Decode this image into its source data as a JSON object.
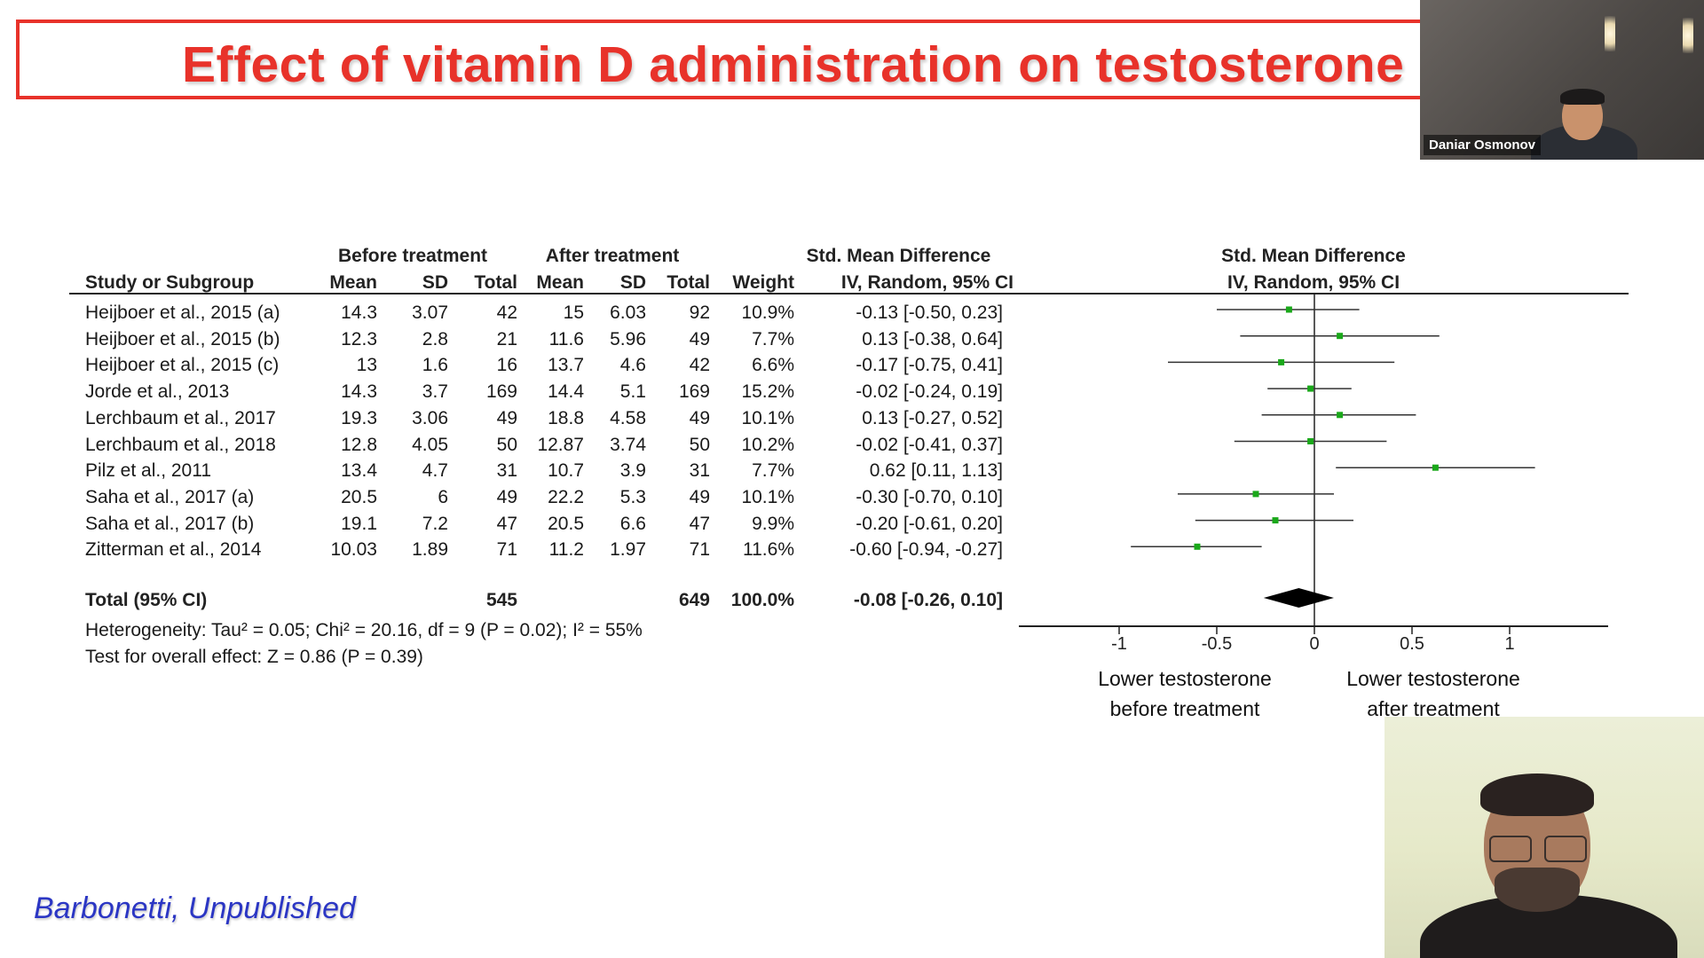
{
  "slide": {
    "title": "Effect of vitamin D administration on testosterone le",
    "citation": "Barbonetti, Unpublished"
  },
  "table": {
    "group_headers": {
      "before": "Before treatment",
      "after": "After treatment",
      "smd": "Std. Mean Difference",
      "plot": "Std. Mean Difference"
    },
    "columns": {
      "study": "Study or Subgroup",
      "mean1": "Mean",
      "sd1": "SD",
      "total1": "Total",
      "mean2": "Mean",
      "sd2": "SD",
      "total2": "Total",
      "weight": "Weight",
      "ci": "IV, Random, 95% CI",
      "plot_ci": "IV, Random, 95% CI"
    },
    "studies": [
      {
        "name": "Heijboer et al., 2015 (a)",
        "mean1": "14.3",
        "sd1": "3.07",
        "total1": "42",
        "mean2": "15",
        "sd2": "6.03",
        "total2": "92",
        "weight": "10.9%",
        "ci_text": "-0.13 [-0.50, 0.23]",
        "est": -0.13,
        "lo": -0.5,
        "hi": 0.23
      },
      {
        "name": "Heijboer et al., 2015 (b)",
        "mean1": "12.3",
        "sd1": "2.8",
        "total1": "21",
        "mean2": "11.6",
        "sd2": "5.96",
        "total2": "49",
        "weight": "7.7%",
        "ci_text": "0.13 [-0.38, 0.64]",
        "est": 0.13,
        "lo": -0.38,
        "hi": 0.64
      },
      {
        "name": "Heijboer et al., 2015 (c)",
        "mean1": "13",
        "sd1": "1.6",
        "total1": "16",
        "mean2": "13.7",
        "sd2": "4.6",
        "total2": "42",
        "weight": "6.6%",
        "ci_text": "-0.17 [-0.75, 0.41]",
        "est": -0.17,
        "lo": -0.75,
        "hi": 0.41
      },
      {
        "name": "Jorde et al., 2013",
        "mean1": "14.3",
        "sd1": "3.7",
        "total1": "169",
        "mean2": "14.4",
        "sd2": "5.1",
        "total2": "169",
        "weight": "15.2%",
        "ci_text": "-0.02 [-0.24, 0.19]",
        "est": -0.02,
        "lo": -0.24,
        "hi": 0.19
      },
      {
        "name": "Lerchbaum et al., 2017",
        "mean1": "19.3",
        "sd1": "3.06",
        "total1": "49",
        "mean2": "18.8",
        "sd2": "4.58",
        "total2": "49",
        "weight": "10.1%",
        "ci_text": "0.13 [-0.27, 0.52]",
        "est": 0.13,
        "lo": -0.27,
        "hi": 0.52
      },
      {
        "name": "Lerchbaum et al., 2018",
        "mean1": "12.8",
        "sd1": "4.05",
        "total1": "50",
        "mean2": "12.87",
        "sd2": "3.74",
        "total2": "50",
        "weight": "10.2%",
        "ci_text": "-0.02 [-0.41, 0.37]",
        "est": -0.02,
        "lo": -0.41,
        "hi": 0.37
      },
      {
        "name": "Pilz et al., 2011",
        "mean1": "13.4",
        "sd1": "4.7",
        "total1": "31",
        "mean2": "10.7",
        "sd2": "3.9",
        "total2": "31",
        "weight": "7.7%",
        "ci_text": "0.62 [0.11, 1.13]",
        "est": 0.62,
        "lo": 0.11,
        "hi": 1.13
      },
      {
        "name": "Saha et al., 2017 (a)",
        "mean1": "20.5",
        "sd1": "6",
        "total1": "49",
        "mean2": "22.2",
        "sd2": "5.3",
        "total2": "49",
        "weight": "10.1%",
        "ci_text": "-0.30 [-0.70, 0.10]",
        "est": -0.3,
        "lo": -0.7,
        "hi": 0.1
      },
      {
        "name": "Saha et al., 2017 (b)",
        "mean1": "19.1",
        "sd1": "7.2",
        "total1": "47",
        "mean2": "20.5",
        "sd2": "6.6",
        "total2": "47",
        "weight": "9.9%",
        "ci_text": "-0.20 [-0.61, 0.20]",
        "est": -0.2,
        "lo": -0.61,
        "hi": 0.2
      },
      {
        "name": "Zitterman et al., 2014",
        "mean1": "10.03",
        "sd1": "1.89",
        "total1": "71",
        "mean2": "11.2",
        "sd2": "1.97",
        "total2": "71",
        "weight": "11.6%",
        "ci_text": "-0.60 [-0.94, -0.27]",
        "est": -0.6,
        "lo": -0.94,
        "hi": -0.27
      }
    ],
    "total": {
      "label": "Total (95% CI)",
      "total1": "545",
      "total2": "649",
      "weight": "100.0%",
      "ci_text": "-0.08 [-0.26, 0.10]",
      "est": -0.08,
      "lo": -0.26,
      "hi": 0.1
    },
    "heterogeneity": "Heterogeneity: Tau² = 0.05; Chi² = 20.16, df = 9 (P = 0.02); I² = 55%",
    "overall_effect": "Test for overall effect: Z = 0.86 (P = 0.39)"
  },
  "chart_data": {
    "type": "scatter",
    "title": "",
    "xlim": [
      -1.0,
      1.0
    ],
    "ticks": [
      -1,
      -0.5,
      0,
      0.5,
      1
    ],
    "tick_labels": [
      "-1",
      "-0.5",
      "0",
      "0.5",
      "1"
    ],
    "direction_left": [
      "Lower testosterone",
      "before treatment"
    ],
    "direction_right": [
      "Lower testosterone",
      "after treatment"
    ],
    "marker_color": "#1aa81a"
  },
  "participants": {
    "top": {
      "name": "Daniar Osmonov"
    }
  }
}
